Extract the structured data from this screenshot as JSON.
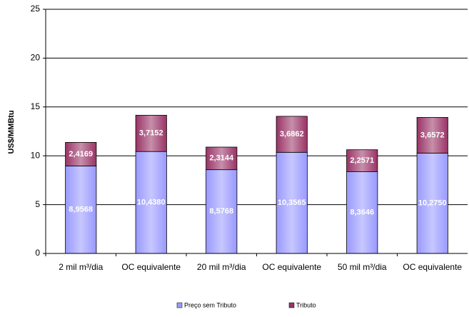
{
  "chart_data": {
    "type": "stacked_bar",
    "y_label": "US$/MMBtu",
    "categories": [
      "2 mil m³/dia",
      "OC equivalente",
      "20 mil m³/dia",
      "OC equivalente",
      "50 mil m³/dia",
      "OC equivalente"
    ],
    "series": [
      {
        "name": "Preço sem Tributo",
        "color": "#9999ff",
        "values": [
          8.9568,
          10.438,
          8.5768,
          10.3565,
          8.3646,
          10.275
        ],
        "value_labels": [
          "8,9568",
          "10,4380",
          "8,5768",
          "10,3565",
          "8,3646",
          "10,2750"
        ]
      },
      {
        "name": "Tributo",
        "color": "#993366",
        "values": [
          2.4169,
          3.7152,
          2.3144,
          3.6862,
          2.2571,
          3.6572
        ],
        "value_labels": [
          "2,4169",
          "3,7152",
          "2,3144",
          "3,6862",
          "2,2571",
          "3,6572"
        ]
      }
    ],
    "ylim": [
      0,
      25
    ],
    "yticks": [
      0,
      5,
      10,
      15,
      20,
      25
    ],
    "grid": true,
    "legend": "bottom"
  }
}
